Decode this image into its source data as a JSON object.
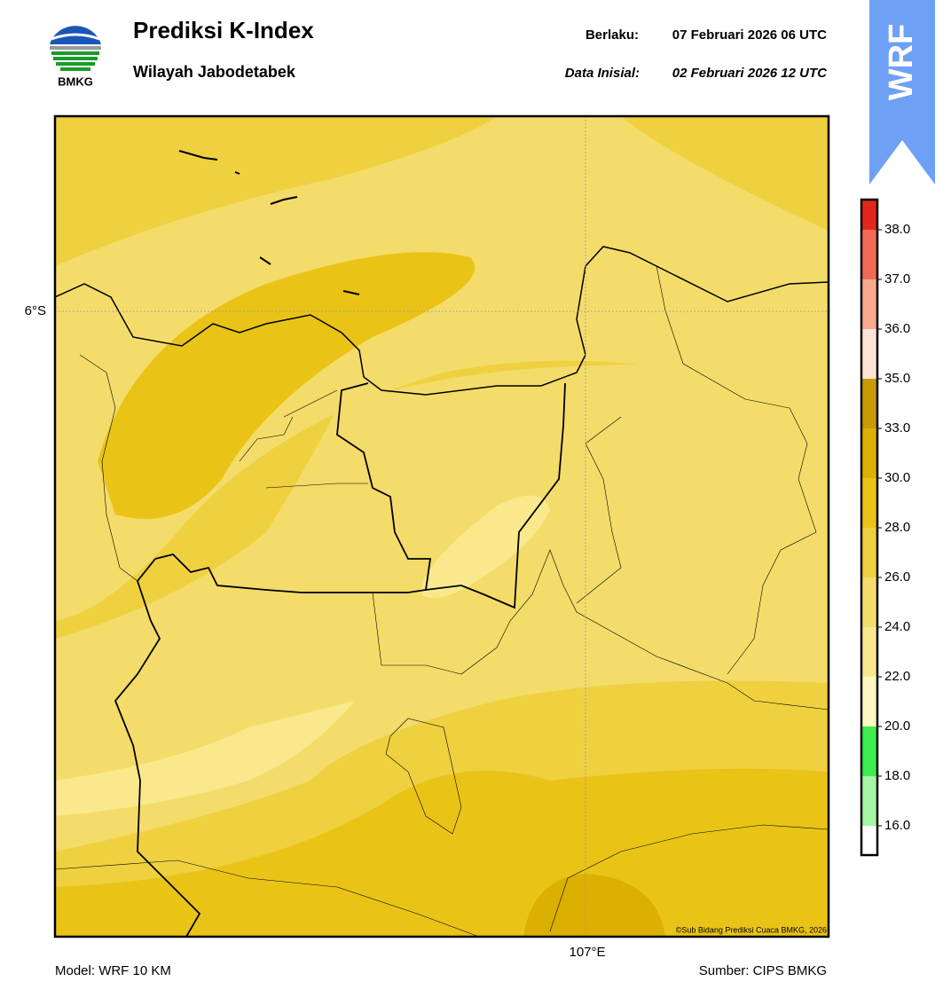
{
  "header": {
    "logo_text": "BMKG",
    "title": "Prediksi K-Index",
    "subtitle": "Wilayah Jabodetabek",
    "valid_label": "Berlaku:",
    "valid_time": "07 Februari 2026 06 UTC",
    "init_label": "Data Inisial:",
    "init_time": "02 Februari 2026 12 UTC",
    "badge": "WRF"
  },
  "map": {
    "lat_label": "6°S",
    "lon_label": "107°E",
    "copyright": "©Sub Bidang Prediksi Cuaca BMKG, 2026"
  },
  "colorbar": {
    "ticks": [
      {
        "value": 16,
        "label": "16.0"
      },
      {
        "value": 18,
        "label": "18.0"
      },
      {
        "value": 20,
        "label": "20.0"
      },
      {
        "value": 22,
        "label": "22.0"
      },
      {
        "value": 24,
        "label": "24.0"
      },
      {
        "value": 26,
        "label": "26.0"
      },
      {
        "value": 28,
        "label": "28.0"
      },
      {
        "value": 30,
        "label": "30.0"
      },
      {
        "value": 33,
        "label": "33.0"
      },
      {
        "value": 35,
        "label": "35.0"
      },
      {
        "value": 36,
        "label": "36.0"
      },
      {
        "value": 37,
        "label": "37.0"
      },
      {
        "value": 38,
        "label": "38.0"
      }
    ],
    "colors": [
      "#ffffff",
      "#a4f5a4",
      "#3cee4e",
      "#fff8c2",
      "#f9e98c",
      "#f3dc69",
      "#eed03e",
      "#e9c417",
      "#dcb000",
      "#c89a00",
      "#fde4d8",
      "#f9a890",
      "#f06a55",
      "#e2261c"
    ]
  },
  "footer": {
    "model": "Model: WRF 10 KM",
    "source": "Sumber: CIPS BMKG"
  }
}
